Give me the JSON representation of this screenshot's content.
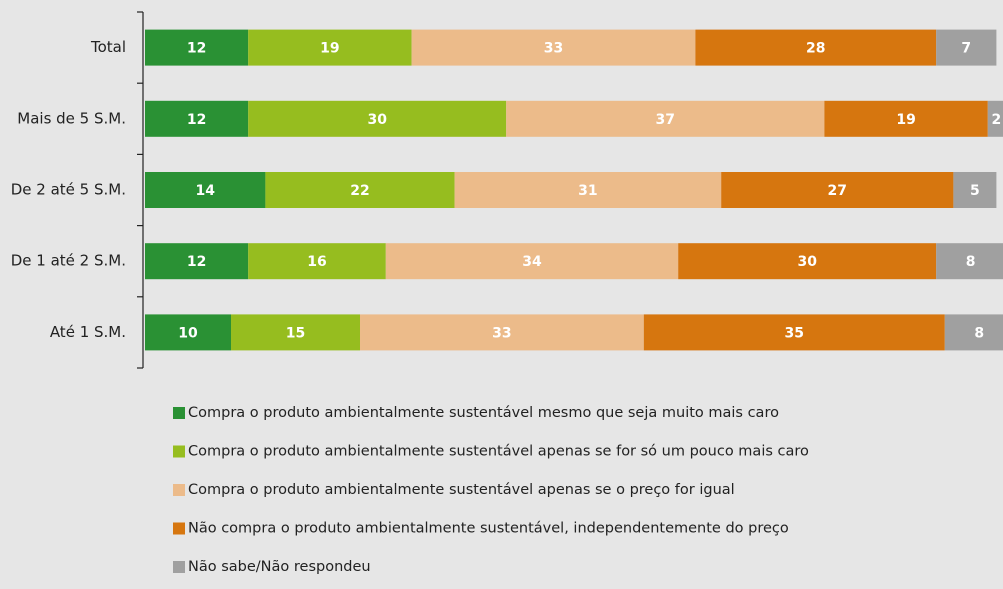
{
  "chart_data": {
    "type": "stacked_barh",
    "categories": [
      "Total",
      "Mais de 5 S.M.",
      "De 2 até 5 S.M.",
      "De 1 até 2 S.M.",
      "Até 1 S.M."
    ],
    "series": [
      {
        "name": "Compra o produto ambientalmente sustentável mesmo que seja muito mais caro",
        "color": "#2a9134",
        "values": [
          12,
          12,
          14,
          12,
          10
        ]
      },
      {
        "name": "Compra o produto ambientalmente sustentável apenas se for só um pouco mais caro",
        "color": "#96bd1f",
        "values": [
          19,
          30,
          22,
          16,
          15
        ]
      },
      {
        "name": "Compra o produto ambientalmente sustentável apenas se o preço for igual",
        "color": "#ecbb8a",
        "values": [
          33,
          37,
          31,
          34,
          33
        ]
      },
      {
        "name": "Não compra o produto ambientalmente sustentável, independentemente do preço",
        "color": "#d6760f",
        "values": [
          28,
          19,
          27,
          30,
          35
        ]
      },
      {
        "name": "Não sabe/Não respondeu",
        "color": "#a0a0a0",
        "values": [
          7,
          2,
          5,
          8,
          8
        ]
      }
    ]
  }
}
